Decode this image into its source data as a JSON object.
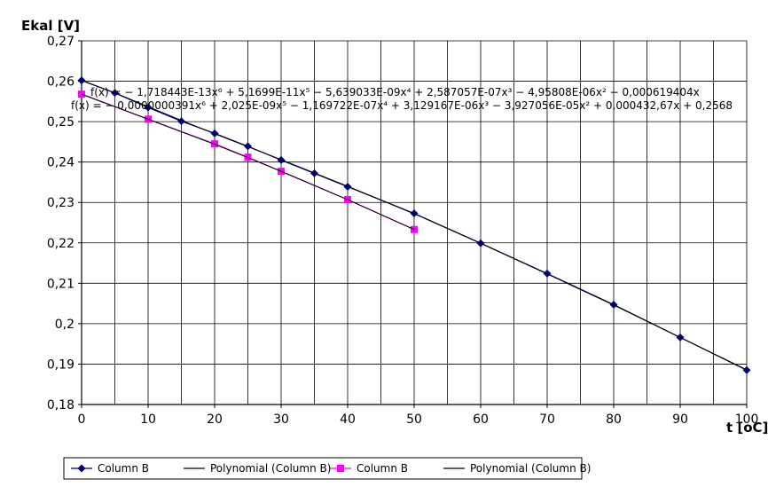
{
  "chart_data": {
    "type": "line",
    "title": "",
    "ylabel": "Ekal [V]",
    "xlabel": "t [oC]",
    "xlim": [
      0,
      100
    ],
    "ylim": [
      0.18,
      0.27
    ],
    "x_ticks": [
      "0",
      "10",
      "20",
      "30",
      "40",
      "50",
      "60",
      "70",
      "80",
      "90",
      "100"
    ],
    "y_ticks": [
      "0,18",
      "0,19",
      "0,2",
      "0,21",
      "0,22",
      "0,23",
      "0,24",
      "0,25",
      "0,26",
      "0,27"
    ],
    "grid": true,
    "legend_position": "bottom",
    "series": [
      {
        "name": "Column B",
        "color": "#000080",
        "marker": "diamond",
        "x": [
          0,
          5,
          10,
          15,
          20,
          25,
          30,
          35,
          40,
          50,
          60,
          70,
          80,
          90,
          100
        ],
        "y": [
          0.2602,
          0.2571,
          0.2535,
          0.2501,
          0.2471,
          0.2439,
          0.2405,
          0.2372,
          0.2339,
          0.2273,
          0.2199,
          0.2124,
          0.2047,
          0.1966,
          0.1885
        ]
      },
      {
        "name": "Polynomial (Column B)",
        "color": "#000000",
        "marker": "none",
        "x": [
          0,
          5,
          10,
          15,
          20,
          25,
          30,
          35,
          40,
          50,
          60,
          70,
          80,
          90,
          100
        ],
        "y": [
          0.2602,
          0.2571,
          0.2537,
          0.2503,
          0.247,
          0.2438,
          0.2406,
          0.2373,
          0.234,
          0.2272,
          0.2199,
          0.2123,
          0.2046,
          0.1966,
          0.1886
        ]
      },
      {
        "name": "Column B",
        "color": "#ff00ff",
        "marker": "square",
        "x": [
          0,
          10,
          20,
          25,
          30,
          40,
          50
        ],
        "y": [
          0.2568,
          0.2506,
          0.2445,
          0.2412,
          0.2377,
          0.2307,
          0.2233
        ]
      },
      {
        "name": "Polynomial (Column B)",
        "color": "#000000",
        "marker": "none",
        "x": [
          0,
          10,
          20,
          25,
          30,
          40,
          50
        ],
        "y": [
          0.2568,
          0.2506,
          0.2444,
          0.2411,
          0.2377,
          0.2307,
          0.2233
        ]
      }
    ],
    "annotations": [
      "f(x) = − 1,718443E-13x⁶ + 5,1699E-11x⁵ − 5,639033E-09x⁴ + 2,587057E-07x³ − 4,95808E-06x² − 0,000619404x",
      "f(x) = − 0,0000000391x⁶ + 2,025E-09x⁵ − 1,169722E-07x⁴ + 3,129167E-06x³ − 3,927056E-05x² + 0,000432,67x + 0,2568"
    ]
  }
}
